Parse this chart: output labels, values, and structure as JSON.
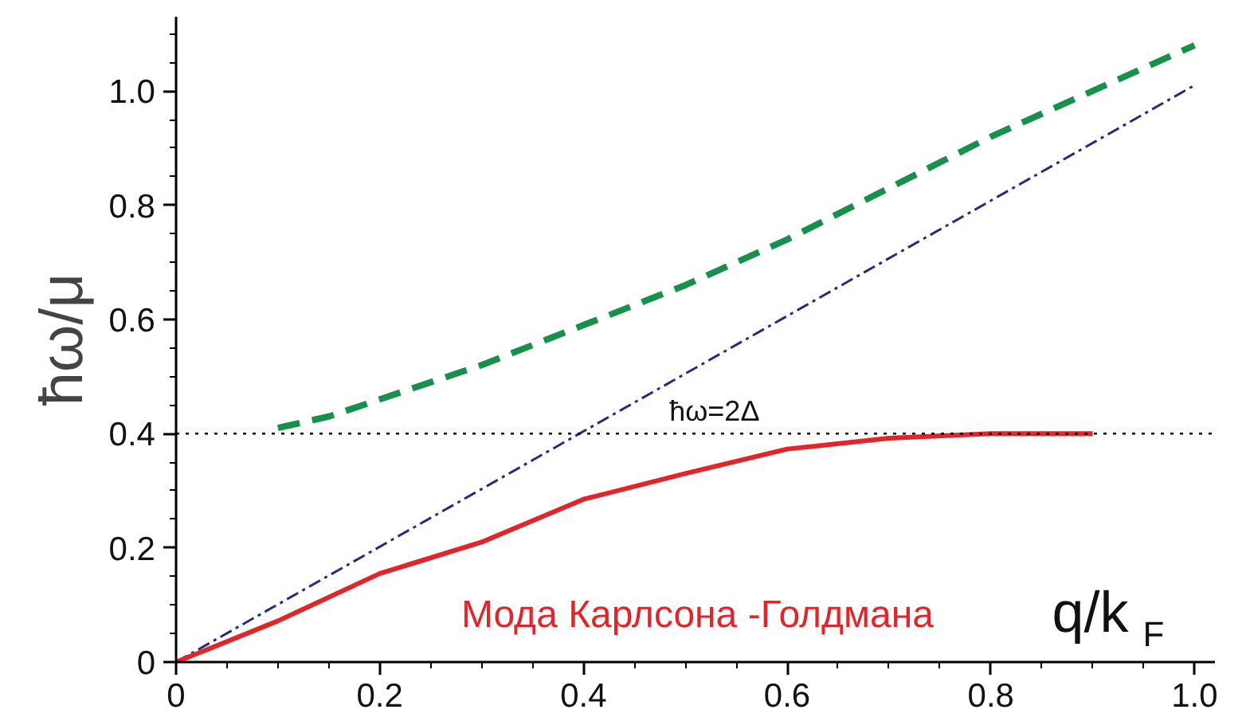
{
  "chart_data": {
    "type": "line",
    "xlabel": "q/k$_{F}$",
    "ylabel": "ħω/μ",
    "xlim": [
      0,
      1.02
    ],
    "ylim": [
      0,
      1.13
    ],
    "xticks": [
      0,
      0.2,
      0.4,
      0.6,
      0.8,
      {
        "value": 1,
        "label": "1.0"
      }
    ],
    "yticks": [
      0,
      0.2,
      0.4,
      0.6,
      0.8,
      {
        "value": 1,
        "label": "1.0"
      }
    ],
    "grid": false,
    "annotations": [
      {
        "text": "ħω=2Δ",
        "x": 0.5,
        "y": 0.4
      }
    ],
    "series": [
      {
        "color": "#16904a",
        "line_style": "dashed",
        "x": [
          0.1,
          0.15,
          0.2,
          0.3,
          0.4,
          0.5,
          0.6,
          0.7,
          0.8,
          0.9,
          1.0
        ],
        "values": [
          0.41,
          0.43,
          0.46,
          0.52,
          0.59,
          0.66,
          0.74,
          0.83,
          0.92,
          1.0,
          1.08
        ]
      },
      {
        "color": "#2a2a7a",
        "line_style": "dashdot",
        "x": [
          0,
          1.0
        ],
        "values": [
          0,
          1.01
        ]
      },
      {
        "name": "Мода Карлсона -Голдмана",
        "color": "#e0262a",
        "line_style": "solid",
        "x": [
          0,
          0.1,
          0.2,
          0.3,
          0.4,
          0.5,
          0.6,
          0.7,
          0.8,
          0.9
        ],
        "values": [
          0,
          0.072,
          0.155,
          0.21,
          0.285,
          0.33,
          0.373,
          0.392,
          0.4,
          0.4
        ]
      }
    ],
    "ref_lines": [
      {
        "axis": "y",
        "value": 0.4,
        "color": "#000000",
        "line_style": "dotted"
      }
    ]
  }
}
